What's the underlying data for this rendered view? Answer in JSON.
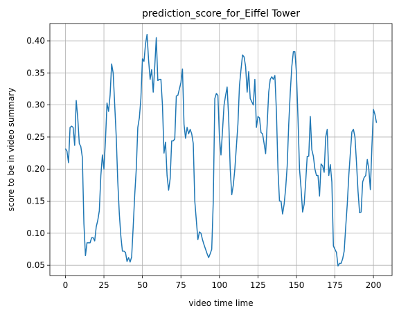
{
  "chart_data": {
    "type": "line",
    "title": "prediction_score_for_Eiffel Tower",
    "x_label": "video time lime",
    "y_label": "score to be in video summary",
    "x": [
      0,
      1,
      2,
      3,
      4,
      5,
      6,
      7,
      8,
      9,
      10,
      11,
      12,
      13,
      14,
      15,
      16,
      17,
      18,
      19,
      20,
      21,
      22,
      23,
      24,
      25,
      26,
      27,
      28,
      29,
      30,
      31,
      32,
      33,
      34,
      35,
      36,
      37,
      38,
      39,
      40,
      41,
      42,
      43,
      44,
      45,
      46,
      47,
      48,
      49,
      50,
      51,
      52,
      53,
      54,
      55,
      56,
      57,
      58,
      59,
      60,
      61,
      62,
      63,
      64,
      65,
      66,
      67,
      68,
      69,
      70,
      71,
      72,
      73,
      74,
      75,
      76,
      77,
      78,
      79,
      80,
      81,
      82,
      83,
      84,
      85,
      86,
      87,
      88,
      89,
      90,
      91,
      92,
      93,
      94,
      95,
      96,
      97,
      98,
      99,
      100,
      101,
      102,
      103,
      104,
      105,
      106,
      107,
      108,
      109,
      110,
      111,
      112,
      113,
      114,
      115,
      116,
      117,
      118,
      119,
      120,
      121,
      122,
      123,
      124,
      125,
      126,
      127,
      128,
      129,
      130,
      131,
      132,
      133,
      134,
      135,
      136,
      137,
      138,
      139,
      140,
      141,
      142,
      143,
      144,
      145,
      146,
      147,
      148,
      149,
      150,
      151,
      152,
      153,
      154,
      155,
      156,
      157,
      158,
      159,
      160,
      161,
      162,
      163,
      164,
      165,
      166,
      167,
      168,
      169,
      170,
      171,
      172,
      173,
      174,
      175,
      176,
      177,
      178,
      179,
      180,
      181,
      182,
      183,
      184,
      185,
      186,
      187,
      188,
      189,
      190,
      191,
      192,
      193,
      194,
      195,
      196,
      197,
      198,
      199,
      200,
      201,
      202
    ],
    "series": [
      {
        "name": "prediction score",
        "color": "#1f77b4",
        "values": [
          0.232,
          0.228,
          0.21,
          0.265,
          0.267,
          0.265,
          0.237,
          0.307,
          0.28,
          0.24,
          0.235,
          0.218,
          0.115,
          0.065,
          0.085,
          0.085,
          0.085,
          0.093,
          0.093,
          0.088,
          0.11,
          0.12,
          0.135,
          0.19,
          0.222,
          0.2,
          0.245,
          0.303,
          0.29,
          0.315,
          0.364,
          0.35,
          0.3,
          0.25,
          0.18,
          0.13,
          0.095,
          0.072,
          0.072,
          0.07,
          0.056,
          0.062,
          0.055,
          0.063,
          0.11,
          0.16,
          0.2,
          0.265,
          0.28,
          0.31,
          0.372,
          0.368,
          0.395,
          0.41,
          0.37,
          0.34,
          0.355,
          0.32,
          0.36,
          0.405,
          0.338,
          0.34,
          0.34,
          0.3,
          0.225,
          0.242,
          0.19,
          0.167,
          0.185,
          0.244,
          0.244,
          0.247,
          0.314,
          0.315,
          0.325,
          0.335,
          0.356,
          0.27,
          0.248,
          0.265,
          0.255,
          0.262,
          0.255,
          0.24,
          0.15,
          0.12,
          0.09,
          0.102,
          0.1,
          0.09,
          0.082,
          0.075,
          0.068,
          0.062,
          0.068,
          0.075,
          0.15,
          0.31,
          0.318,
          0.315,
          0.25,
          0.222,
          0.26,
          0.3,
          0.315,
          0.328,
          0.28,
          0.2,
          0.16,
          0.175,
          0.2,
          0.235,
          0.27,
          0.33,
          0.355,
          0.378,
          0.375,
          0.36,
          0.32,
          0.352,
          0.31,
          0.305,
          0.3,
          0.34,
          0.265,
          0.282,
          0.28,
          0.257,
          0.255,
          0.24,
          0.224,
          0.27,
          0.32,
          0.34,
          0.344,
          0.34,
          0.346,
          0.29,
          0.2,
          0.15,
          0.15,
          0.13,
          0.145,
          0.17,
          0.205,
          0.27,
          0.32,
          0.36,
          0.383,
          0.383,
          0.35,
          0.28,
          0.2,
          0.17,
          0.133,
          0.145,
          0.18,
          0.22,
          0.22,
          0.282,
          0.23,
          0.22,
          0.2,
          0.19,
          0.19,
          0.158,
          0.208,
          0.205,
          0.195,
          0.25,
          0.262,
          0.19,
          0.207,
          0.18,
          0.08,
          0.075,
          0.07,
          0.049,
          0.053,
          0.053,
          0.06,
          0.072,
          0.11,
          0.145,
          0.19,
          0.225,
          0.258,
          0.262,
          0.25,
          0.21,
          0.165,
          0.132,
          0.133,
          0.18,
          0.187,
          0.19,
          0.215,
          0.2,
          0.168,
          0.235,
          0.293,
          0.285,
          0.272
        ]
      }
    ],
    "xlim": [
      -10.1,
      212.1
    ],
    "xticks": [
      0,
      25,
      50,
      75,
      100,
      125,
      150,
      175,
      200
    ],
    "ylim": [
      0.034,
      0.427
    ],
    "yticks": [
      0.05,
      {
        "value": 0.1,
        "label": "0.10"
      },
      0.15,
      {
        "value": 0.2,
        "label": "0.20"
      },
      0.25,
      {
        "value": 0.3,
        "label": "0.30"
      },
      0.35,
      {
        "value": 0.4,
        "label": "0.40"
      }
    ],
    "grid": true
  }
}
